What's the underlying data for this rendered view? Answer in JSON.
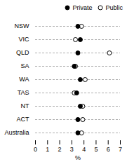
{
  "chart_data": {
    "type": "dot",
    "categories": [
      "NSW",
      "VIC",
      "QLD",
      "SA",
      "WA",
      "TAS",
      "NT",
      "ACT",
      "Australia"
    ],
    "series": [
      {
        "name": "Private",
        "color": "#000000",
        "marker": "filled",
        "values": [
          3.5,
          3.7,
          3.5,
          3.2,
          3.7,
          3.4,
          3.7,
          3.5,
          3.5
        ]
      },
      {
        "name": "Public",
        "color": "#000000",
        "marker": "open",
        "values": [
          3.8,
          3.3,
          6.1,
          3.3,
          4.1,
          3.2,
          3.9,
          3.9,
          3.8
        ]
      }
    ],
    "orientation": "horizontal",
    "xlabel": "%",
    "xlim": [
      0,
      7
    ],
    "xticks": [
      0,
      1,
      2,
      3,
      4,
      5,
      6,
      7
    ],
    "grid": true,
    "legend": "upper right"
  }
}
